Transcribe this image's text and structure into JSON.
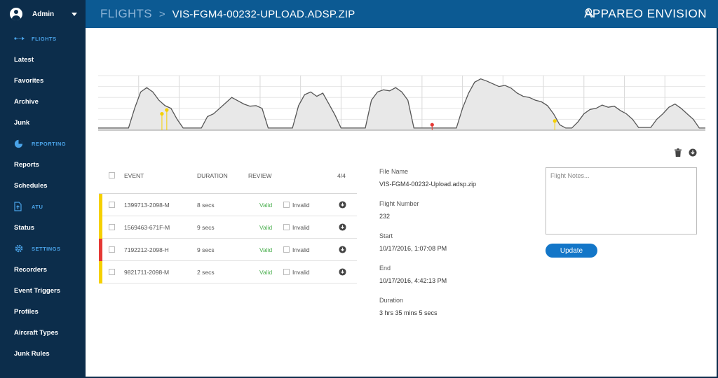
{
  "user": {
    "name": "Admin"
  },
  "sidebar": {
    "sections": [
      {
        "label": "FLIGHTS",
        "icon": "flight-path-icon",
        "items": [
          "Latest",
          "Favorites",
          "Archive",
          "Junk"
        ]
      },
      {
        "label": "REPORTING",
        "icon": "pie-chart-icon",
        "items": [
          "Reports",
          "Schedules"
        ]
      },
      {
        "label": "ATU",
        "icon": "upload-file-icon",
        "items": [
          "Status"
        ]
      },
      {
        "label": "SETTINGS",
        "icon": "gear-icon",
        "items": [
          "Recorders",
          "Event Triggers",
          "Profiles",
          "Aircraft Types",
          "Junk Rules"
        ]
      }
    ]
  },
  "header": {
    "breadcrumb_root": "FLIGHTS",
    "breadcrumb_sep": ">",
    "file_title": "VIS-FGM4-00232-UPLOAD.ADSP.ZIP",
    "brand": "APPAREO ENVISION"
  },
  "colors": {
    "sidebar": "#0c2d4b",
    "header": "#0c5a93",
    "accent": "#4aa3e8",
    "valid": "#4caf50",
    "warning": "#f5d000",
    "danger": "#e53935",
    "button": "#1376c8"
  },
  "events": {
    "headers": {
      "event": "EVENT",
      "duration": "DURATION",
      "review": "REVIEW",
      "count": "4/4"
    },
    "rows": [
      {
        "id": "1399713-2098-M",
        "duration": "8 secs",
        "valid_label": "Valid",
        "invalid_label": "Invalid",
        "severity": "warning"
      },
      {
        "id": "1569463-671F-M",
        "duration": "9 secs",
        "valid_label": "Valid",
        "invalid_label": "Invalid",
        "severity": "warning"
      },
      {
        "id": "7192212-2098-H",
        "duration": "9 secs",
        "valid_label": "Valid",
        "invalid_label": "Invalid",
        "severity": "danger"
      },
      {
        "id": "9821711-2098-M",
        "duration": "2 secs",
        "valid_label": "Valid",
        "invalid_label": "Invalid",
        "severity": "warning"
      }
    ]
  },
  "details": {
    "file_name_label": "File Name",
    "file_name": "VIS-FGM4-00232-Upload.adsp.zip",
    "flight_number_label": "Flight Number",
    "flight_number": "232",
    "start_label": "Start",
    "start": "10/17/2016, 1:07:08 PM",
    "end_label": "End",
    "end": "10/17/2016, 4:42:13 PM",
    "duration_label": "Duration",
    "duration": "3 hrs 35 mins 5 secs"
  },
  "notes": {
    "placeholder": "Flight Notes...",
    "value": ""
  },
  "update_label": "Update",
  "chart_data": {
    "type": "area",
    "x_range": [
      0,
      100
    ],
    "y_range": [
      0,
      100
    ],
    "grid": true,
    "event_markers": [
      {
        "x": 10.5,
        "y": 30,
        "color": "#f5d000"
      },
      {
        "x": 11.3,
        "y": 37,
        "color": "#f5d000"
      },
      {
        "x": 55.0,
        "y": 10,
        "color": "#e53935"
      },
      {
        "x": 75.2,
        "y": 17,
        "color": "#f5d000"
      }
    ],
    "series": [
      {
        "points": [
          [
            0,
            4
          ],
          [
            5,
            4
          ],
          [
            6,
            40
          ],
          [
            7,
            70
          ],
          [
            8,
            78
          ],
          [
            9,
            70
          ],
          [
            10,
            55
          ],
          [
            11,
            45
          ],
          [
            12,
            40
          ],
          [
            13,
            20
          ],
          [
            14,
            4
          ],
          [
            17,
            4
          ],
          [
            18,
            25
          ],
          [
            19,
            30
          ],
          [
            20,
            40
          ],
          [
            21,
            50
          ],
          [
            22,
            60
          ],
          [
            23,
            54
          ],
          [
            24,
            48
          ],
          [
            25,
            44
          ],
          [
            26,
            45
          ],
          [
            27,
            40
          ],
          [
            28,
            4
          ],
          [
            32,
            4
          ],
          [
            33,
            45
          ],
          [
            34,
            65
          ],
          [
            35,
            70
          ],
          [
            36,
            62
          ],
          [
            37,
            68
          ],
          [
            38,
            48
          ],
          [
            39,
            28
          ],
          [
            40,
            4
          ],
          [
            44,
            4
          ],
          [
            45,
            55
          ],
          [
            46,
            70
          ],
          [
            47,
            74
          ],
          [
            48,
            72
          ],
          [
            49,
            78
          ],
          [
            50,
            70
          ],
          [
            51,
            55
          ],
          [
            52,
            4
          ],
          [
            59,
            4
          ],
          [
            60,
            40
          ],
          [
            61,
            68
          ],
          [
            62,
            88
          ],
          [
            63,
            94
          ],
          [
            64,
            90
          ],
          [
            65,
            85
          ],
          [
            66,
            80
          ],
          [
            67,
            82
          ],
          [
            68,
            77
          ],
          [
            69,
            68
          ],
          [
            70,
            62
          ],
          [
            71,
            60
          ],
          [
            72,
            55
          ],
          [
            73,
            52
          ],
          [
            74,
            45
          ],
          [
            75,
            30
          ],
          [
            76,
            10
          ],
          [
            77,
            4
          ],
          [
            78,
            4
          ],
          [
            79,
            15
          ],
          [
            80,
            30
          ],
          [
            81,
            38
          ],
          [
            82,
            40
          ],
          [
            83,
            46
          ],
          [
            84,
            42
          ],
          [
            85,
            44
          ],
          [
            86,
            36
          ],
          [
            87,
            30
          ],
          [
            88,
            20
          ],
          [
            89,
            5
          ],
          [
            91,
            5
          ],
          [
            92,
            20
          ],
          [
            93,
            30
          ],
          [
            94,
            42
          ],
          [
            95,
            48
          ],
          [
            96,
            40
          ],
          [
            97,
            30
          ],
          [
            98,
            20
          ],
          [
            99,
            4
          ],
          [
            100,
            4
          ]
        ]
      }
    ]
  }
}
